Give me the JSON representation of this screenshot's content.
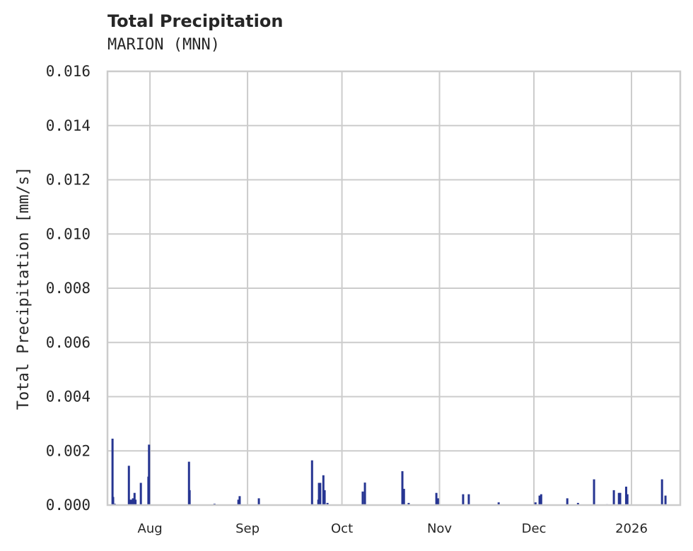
{
  "header": {
    "title": "Total Precipitation",
    "subtitle": "MARION (MNN)"
  },
  "colors": {
    "bar": "#263592",
    "grid": "#cccccc",
    "text": "#262626"
  },
  "chart_data": {
    "type": "bar",
    "title": "Total Precipitation",
    "subtitle": "MARION (MNN)",
    "xlabel": "",
    "ylabel": "Total Precipitation [mm/s]",
    "ylim": [
      0,
      0.016
    ],
    "yticks": [
      "0.000",
      "0.002",
      "0.004",
      "0.006",
      "0.008",
      "0.010",
      "0.012",
      "0.014",
      "0.016"
    ],
    "xticks": [
      {
        "label": "Aug",
        "day": 0
      },
      {
        "label": "Sep",
        "day": 31
      },
      {
        "label": "Oct",
        "day": 61
      },
      {
        "label": "Nov",
        "day": 92
      },
      {
        "label": "Dec",
        "day": 122
      },
      {
        "label": "2026",
        "day": 153
      }
    ],
    "xlim_days_from_aug1": [
      -13.5,
      168.5
    ],
    "grid": true,
    "legend": null,
    "series": [
      {
        "name": "Total Precipitation",
        "points_day_value": [
          [
            -11.9,
            0.00245
          ],
          [
            -11.7,
            0.0003
          ],
          [
            -11.2,
            5e-05
          ],
          [
            -6.7,
            0.00145
          ],
          [
            -6.3,
            0.0002
          ],
          [
            -5.8,
            0.0002
          ],
          [
            -5.4,
            0.00025
          ],
          [
            -4.9,
            0.00045
          ],
          [
            -4.6,
            0.0002
          ],
          [
            -2.9,
            0.00082
          ],
          [
            -0.5,
            0.00105
          ],
          [
            -0.3,
            0.00223
          ],
          [
            12.4,
            0.0016
          ],
          [
            12.6,
            0.00055
          ],
          [
            20.5,
            5e-05
          ],
          [
            28.1,
            0.0002
          ],
          [
            28.5,
            0.00033
          ],
          [
            34.6,
            0.00025
          ],
          [
            51.5,
            0.00165
          ],
          [
            51.9,
            3e-05
          ],
          [
            53.5,
            0.0002
          ],
          [
            53.7,
            0.00082
          ],
          [
            54.1,
            0.00082
          ],
          [
            55.1,
            0.0011
          ],
          [
            55.5,
            0.00055
          ],
          [
            56.4,
            8e-05
          ],
          [
            67.6,
            0.0005
          ],
          [
            68.3,
            0.00083
          ],
          [
            80.2,
            0.00125
          ],
          [
            80.7,
            0.0006
          ],
          [
            82.2,
            8e-05
          ],
          [
            91.0,
            0.00045
          ],
          [
            91.5,
            0.00025
          ],
          [
            99.5,
            0.0004
          ],
          [
            101.3,
            0.0004
          ],
          [
            110.8,
            0.0001
          ],
          [
            122.5,
            0.0001
          ],
          [
            123.8,
            0.00035
          ],
          [
            124.3,
            0.0004
          ],
          [
            132.6,
            0.00025
          ],
          [
            136.0,
            8e-05
          ],
          [
            141.1,
            0.00095
          ],
          [
            145.2,
            3e-05
          ],
          [
            147.4,
            0.00055
          ],
          [
            149.0,
            0.00045
          ],
          [
            149.4,
            0.00045
          ],
          [
            151.3,
            0.00068
          ],
          [
            151.7,
            0.0004
          ],
          [
            153.3,
            2e-05
          ],
          [
            154.0,
            2e-05
          ],
          [
            162.7,
            0.00095
          ],
          [
            163.8,
            0.00035
          ]
        ]
      }
    ]
  }
}
